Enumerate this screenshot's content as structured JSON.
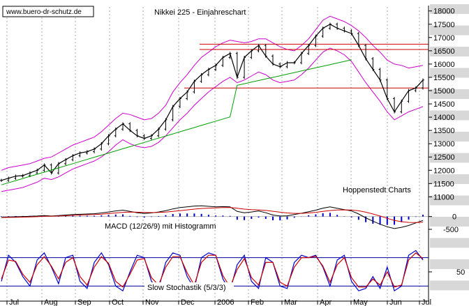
{
  "chart_data": {
    "type": "line",
    "title": "Nikkei 225 - Einjahreschart",
    "source_label": "www.buero-dr-schutz.de",
    "provider_label": "Hoppenstedt Charts",
    "months": [
      "Jul",
      "Aug",
      "Sep",
      "Oct",
      "Nov",
      "Dec",
      "2006",
      "Feb",
      "Mar",
      "Apr",
      "May",
      "Jun",
      "Jul"
    ],
    "price": {
      "y_ticks": [
        11000,
        11500,
        12000,
        12500,
        13000,
        13500,
        14000,
        14500,
        15000,
        15500,
        16000,
        16500,
        17000,
        17500,
        18000
      ],
      "ylim": [
        10800,
        18150
      ],
      "grid": true,
      "series": [
        {
          "name": "",
          "color": "#000000",
          "values": [
            11620,
            11700,
            11780,
            11800,
            11900,
            12000,
            12200,
            11900,
            12250,
            12400,
            12550,
            12650,
            12700,
            12800,
            13000,
            13300,
            13550,
            13750,
            13500,
            13300,
            13200,
            13300,
            13550,
            13900,
            14400,
            14700,
            14950,
            15350,
            15600,
            15800,
            15950,
            16250,
            16400,
            15500,
            16250,
            16500,
            16700,
            16300,
            16000,
            15900,
            16050,
            16050,
            16400,
            16700,
            17050,
            17350,
            17500,
            17350,
            17250,
            17150,
            16700,
            16200,
            15800,
            15400,
            14700,
            14200,
            14600,
            15000,
            15100,
            15400
          ]
        },
        {
          "name": "",
          "color": "#00a000",
          "values": [
            11450,
            11530,
            11610,
            11690,
            11770,
            11850,
            11930,
            12010,
            12090,
            12170,
            12250,
            12330,
            12410,
            12490,
            12570,
            12650,
            12730,
            12810,
            12890,
            12970,
            13050,
            13130,
            13210,
            13290,
            13370,
            13450,
            13530,
            13610,
            13690,
            13770,
            13850,
            13930,
            14010,
            15200,
            15260,
            15320,
            15380,
            15440,
            15500,
            15560,
            15620,
            15680,
            15740,
            15800,
            15860,
            15920,
            15980,
            16040,
            16100,
            16160,
            null,
            null,
            null,
            null,
            null,
            null,
            null,
            null,
            null,
            null
          ]
        }
      ],
      "bollinger_upper": [
        12000,
        12100,
        12150,
        12200,
        12250,
        12350,
        12450,
        12500,
        12650,
        12800,
        12950,
        13050,
        13150,
        13250,
        13450,
        13700,
        13950,
        14150,
        14100,
        14000,
        13900,
        13950,
        14150,
        14450,
        14950,
        15300,
        15600,
        15950,
        16250,
        16450,
        16650,
        16800,
        16900,
        16850,
        16800,
        16850,
        16950,
        16950,
        16800,
        16650,
        16550,
        16500,
        16700,
        16950,
        17300,
        17650,
        17800,
        17700,
        17600,
        17450,
        17250,
        17000,
        16700,
        16450,
        16150,
        16000,
        15950,
        15850,
        15900,
        15950
      ],
      "bollinger_lower": [
        11200,
        11250,
        11300,
        11350,
        11450,
        11550,
        11700,
        11650,
        11750,
        11900,
        12050,
        12150,
        12250,
        12350,
        12500,
        12700,
        12950,
        13150,
        13000,
        12900,
        12850,
        12900,
        13050,
        13300,
        13600,
        13900,
        14150,
        14450,
        14700,
        14950,
        15150,
        15350,
        15500,
        15300,
        15400,
        15550,
        15700,
        15600,
        15400,
        15300,
        15350,
        15400,
        15600,
        15850,
        16150,
        16450,
        16600,
        16500,
        16350,
        16100,
        15700,
        15300,
        14950,
        14600,
        14200,
        13900,
        14050,
        14200,
        14300,
        14400
      ],
      "horizontal_lines": [
        {
          "value": 16750,
          "color": "#cc0000"
        },
        {
          "value": 16550,
          "color": "#cc0000"
        },
        {
          "value": 15100,
          "color": "#cc0000"
        }
      ]
    },
    "macd": {
      "label": "MACD (12/26/9) mit Histogramm",
      "y_ticks": [
        0,
        -500
      ],
      "ylim": [
        -800,
        700
      ],
      "macd_line": [
        -30,
        -20,
        -10,
        0,
        10,
        20,
        40,
        20,
        40,
        60,
        80,
        90,
        100,
        110,
        140,
        180,
        220,
        250,
        200,
        150,
        120,
        140,
        180,
        230,
        300,
        350,
        380,
        410,
        420,
        400,
        380,
        390,
        380,
        200,
        150,
        180,
        220,
        150,
        60,
        20,
        30,
        80,
        130,
        190,
        250,
        330,
        380,
        320,
        270,
        220,
        100,
        -50,
        -180,
        -300,
        -400,
        -470,
        -420,
        -350,
        -250,
        -150
      ],
      "signal_line": [
        -40,
        -35,
        -30,
        -22,
        -15,
        -5,
        10,
        15,
        22,
        32,
        45,
        58,
        70,
        80,
        95,
        115,
        140,
        165,
        175,
        170,
        160,
        155,
        160,
        175,
        200,
        230,
        260,
        290,
        315,
        330,
        340,
        350,
        355,
        325,
        290,
        270,
        260,
        240,
        205,
        170,
        140,
        125,
        125,
        140,
        165,
        200,
        235,
        255,
        260,
        255,
        225,
        170,
        100,
        20,
        -70,
        -150,
        -200,
        -230,
        -235,
        -220
      ],
      "macd_color": "#000000",
      "signal_color": "#cc0000",
      "histogram_color": "#0000cc"
    },
    "stochastic": {
      "label": "Slow Stochastik (5/3/3)",
      "y_ticks": [
        50
      ],
      "ylim": [
        0,
        100
      ],
      "reference_lines": [
        80,
        20
      ],
      "k_line": [
        30,
        85,
        70,
        40,
        20,
        75,
        90,
        60,
        25,
        80,
        85,
        30,
        15,
        70,
        90,
        65,
        20,
        10,
        50,
        85,
        80,
        30,
        15,
        70,
        90,
        85,
        40,
        15,
        80,
        90,
        85,
        35,
        10,
        65,
        85,
        30,
        15,
        80,
        70,
        20,
        15,
        70,
        85,
        80,
        85,
        60,
        20,
        75,
        85,
        30,
        10,
        15,
        40,
        15,
        60,
        10,
        20,
        85,
        95,
        75
      ],
      "d_line": [
        35,
        75,
        72,
        45,
        28,
        65,
        82,
        62,
        35,
        70,
        80,
        40,
        22,
        60,
        82,
        68,
        30,
        18,
        45,
        75,
        78,
        38,
        22,
        60,
        82,
        82,
        48,
        22,
        70,
        85,
        85,
        42,
        18,
        55,
        78,
        38,
        22,
        70,
        70,
        28,
        20,
        60,
        80,
        80,
        83,
        62,
        28,
        65,
        80,
        38,
        18,
        18,
        35,
        22,
        50,
        18,
        22,
        75,
        90,
        78
      ],
      "k_color": "#0000cc",
      "d_color": "#cc0000"
    }
  }
}
